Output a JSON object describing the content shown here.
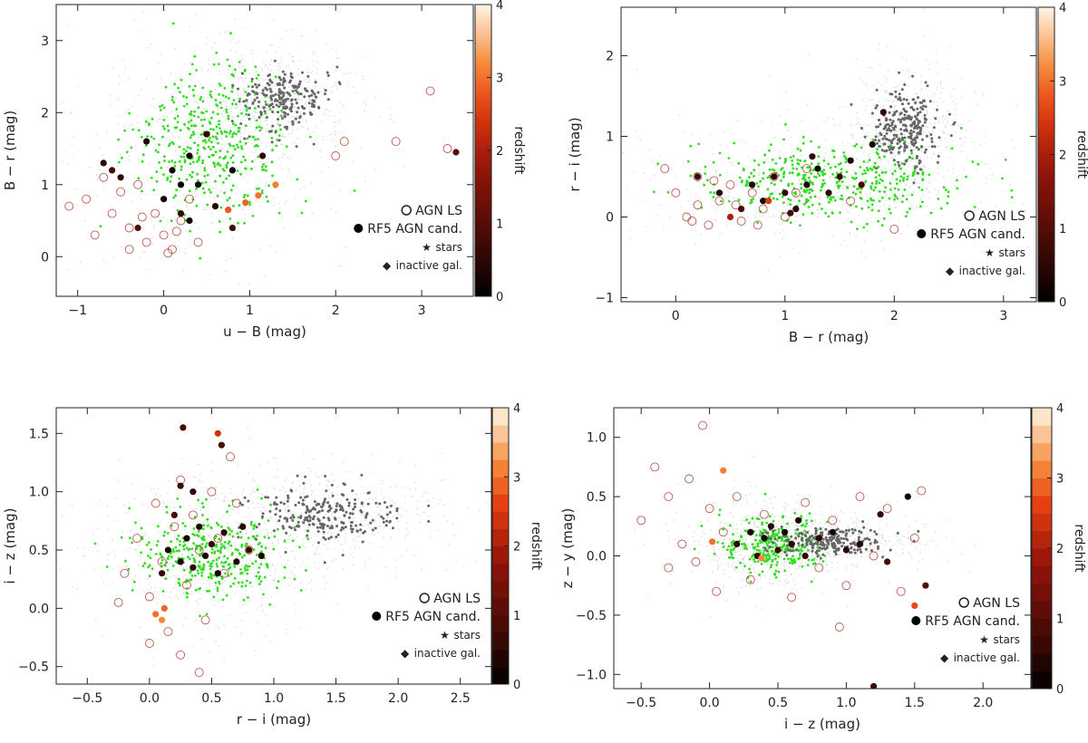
{
  "figure": {
    "legend_labels": {
      "agn": "AGN LS",
      "rf5": "RF5 AGN cand.",
      "stars": "stars",
      "inactive": "inactive gal."
    },
    "legend_symbols": {
      "star": "★",
      "diamond": "◆"
    },
    "colors": {
      "stars": "#666666",
      "inactive": "#33dd22",
      "agn_ring": "#b04030",
      "faint_cloud": "#aaaaaa"
    },
    "colorbar": {
      "label": "redshift",
      "range": [
        0,
        4
      ],
      "ticks": [
        "0",
        "1",
        "2",
        "3",
        "4"
      ]
    }
  },
  "chart_data": [
    {
      "type": "scatter",
      "xlabel": "u − B (mag)",
      "ylabel": "B − r (mag)",
      "xlim": [
        -1.25,
        3.6
      ],
      "ylim": [
        -0.55,
        3.5
      ],
      "xticks": [
        "−1",
        "0",
        "1",
        "2",
        "3"
      ],
      "xtick_values": [
        -1,
        0,
        1,
        2,
        3
      ],
      "yticks": [
        "0",
        "1",
        "2",
        "3"
      ],
      "ytick_values": [
        0,
        1,
        2,
        3
      ],
      "colorbar_style": "continuous",
      "series": [
        {
          "name": "stars",
          "clusters": [
            {
              "cx": 1.4,
              "cy": 2.2,
              "sx": 0.25,
              "sy": 0.22,
              "n": 220
            }
          ]
        },
        {
          "name": "inactive gal.",
          "clusters": [
            {
              "cx": 0.6,
              "cy": 1.6,
              "sx": 0.45,
              "sy": 0.5,
              "n": 420
            }
          ]
        },
        {
          "name": "AGN LS",
          "points": [
            [
              -1.1,
              0.7
            ],
            [
              -0.9,
              0.8
            ],
            [
              -0.8,
              0.3
            ],
            [
              -0.7,
              1.1
            ],
            [
              -0.6,
              0.6
            ],
            [
              -0.5,
              0.9
            ],
            [
              -0.4,
              0.4
            ],
            [
              -0.3,
              1.0
            ],
            [
              -0.2,
              0.2
            ],
            [
              -0.1,
              0.6
            ],
            [
              0.0,
              0.3
            ],
            [
              0.1,
              0.1
            ],
            [
              0.2,
              0.5
            ],
            [
              0.3,
              0.8
            ],
            [
              0.4,
              0.2
            ],
            [
              -0.4,
              0.1
            ],
            [
              0.05,
              0.05
            ],
            [
              -0.25,
              0.55
            ],
            [
              0.15,
              0.35
            ],
            [
              2.0,
              1.4
            ],
            [
              2.1,
              1.6
            ],
            [
              2.7,
              1.6
            ],
            [
              3.1,
              2.3
            ],
            [
              3.3,
              1.5
            ]
          ]
        },
        {
          "name": "RF5 AGN cand.",
          "points": [
            [
              -0.7,
              1.3,
              0.5
            ],
            [
              -0.6,
              1.2,
              0.8
            ],
            [
              -0.5,
              1.1,
              0.6
            ],
            [
              -0.3,
              0.4,
              1.0
            ],
            [
              -0.2,
              1.6,
              0.4
            ],
            [
              0.0,
              0.8,
              0.2
            ],
            [
              0.1,
              1.2,
              0.3
            ],
            [
              0.2,
              0.6,
              0.5
            ],
            [
              0.3,
              1.4,
              0.2
            ],
            [
              0.4,
              1.0,
              0.3
            ],
            [
              0.5,
              1.7,
              0.6
            ],
            [
              0.2,
              1.0,
              0.1
            ],
            [
              0.6,
              0.7,
              0.4
            ],
            [
              0.3,
              0.5,
              0.2
            ],
            [
              0.8,
              1.2,
              0.3
            ],
            [
              0.8,
              0.4,
              0.8
            ],
            [
              0.75,
              0.65,
              2.8
            ],
            [
              0.95,
              0.75,
              2.9
            ],
            [
              1.1,
              0.85,
              3.0
            ],
            [
              1.3,
              1.0,
              3.1
            ],
            [
              1.15,
              1.4,
              0.5
            ],
            [
              3.4,
              1.45,
              1.0
            ]
          ]
        }
      ]
    },
    {
      "type": "scatter",
      "xlabel": "B − r (mag)",
      "ylabel": "r − i (mag)",
      "xlim": [
        -0.5,
        3.3
      ],
      "ylim": [
        -1.05,
        2.6
      ],
      "xticks": [
        "0",
        "1",
        "2",
        "3"
      ],
      "xtick_values": [
        0,
        1,
        2,
        3
      ],
      "yticks": [
        "−1",
        "0",
        "1",
        "2"
      ],
      "ytick_values": [
        -1,
        0,
        1,
        2
      ],
      "colorbar_style": "continuous",
      "series": [
        {
          "name": "stars",
          "clusters": [
            {
              "cx": 2.1,
              "cy": 1.1,
              "sx": 0.15,
              "sy": 0.25,
              "n": 260
            }
          ]
        },
        {
          "name": "inactive gal.",
          "clusters": [
            {
              "cx": 1.4,
              "cy": 0.45,
              "sx": 0.6,
              "sy": 0.25,
              "n": 420
            }
          ]
        },
        {
          "name": "AGN LS",
          "points": [
            [
              -0.1,
              0.6
            ],
            [
              0.0,
              0.3
            ],
            [
              0.1,
              0.0
            ],
            [
              0.2,
              0.5
            ],
            [
              0.3,
              -0.1
            ],
            [
              0.4,
              0.2
            ],
            [
              0.5,
              0.4
            ],
            [
              0.6,
              -0.05
            ],
            [
              0.7,
              0.3
            ],
            [
              0.8,
              0.1
            ],
            [
              0.9,
              0.5
            ],
            [
              1.0,
              0.0
            ],
            [
              1.1,
              0.3
            ],
            [
              1.2,
              0.6
            ],
            [
              0.2,
              0.15
            ],
            [
              0.35,
              0.45
            ],
            [
              0.55,
              0.15
            ],
            [
              0.15,
              -0.05
            ],
            [
              0.75,
              -0.1
            ],
            [
              1.6,
              0.2
            ],
            [
              2.0,
              -0.15
            ]
          ]
        },
        {
          "name": "RF5 AGN cand.",
          "points": [
            [
              0.2,
              0.5,
              0.7
            ],
            [
              0.4,
              0.3,
              0.4
            ],
            [
              0.6,
              0.1,
              0.8
            ],
            [
              0.7,
              0.4,
              0.3
            ],
            [
              0.8,
              0.2,
              0.2
            ],
            [
              0.9,
              0.5,
              0.5
            ],
            [
              1.0,
              0.3,
              0.6
            ],
            [
              1.1,
              0.1,
              0.4
            ],
            [
              1.2,
              0.4,
              0.3
            ],
            [
              1.3,
              0.6,
              0.2
            ],
            [
              1.4,
              0.3,
              0.5
            ],
            [
              1.5,
              0.5,
              0.6
            ],
            [
              1.6,
              0.7,
              0.3
            ],
            [
              1.7,
              0.4,
              0.8
            ],
            [
              1.8,
              0.9,
              0.2
            ],
            [
              0.5,
              0.0,
              2.0
            ],
            [
              0.85,
              0.2,
              2.5
            ],
            [
              1.05,
              0.05,
              0.7
            ],
            [
              1.25,
              0.75,
              0.6
            ],
            [
              1.9,
              1.3,
              0.5
            ]
          ]
        }
      ]
    },
    {
      "type": "scatter",
      "xlabel": "r − i (mag)",
      "ylabel": "i − z (mag)",
      "xlim": [
        -0.75,
        2.75
      ],
      "ylim": [
        -0.65,
        1.72
      ],
      "xticks": [
        "−0.5",
        "0.0",
        "0.5",
        "1.0",
        "1.5",
        "2.0",
        "2.5"
      ],
      "xtick_values": [
        -0.5,
        0.0,
        0.5,
        1.0,
        1.5,
        2.0,
        2.5
      ],
      "yticks": [
        "−0.5",
        "0.0",
        "0.5",
        "1.0",
        "1.5"
      ],
      "ytick_values": [
        -0.5,
        0.0,
        0.5,
        1.0,
        1.5
      ],
      "colorbar_style": "stepped",
      "series": [
        {
          "name": "stars",
          "clusters": [
            {
              "cx": 1.4,
              "cy": 0.8,
              "sx": 0.3,
              "sy": 0.12,
              "n": 240
            }
          ]
        },
        {
          "name": "inactive gal.",
          "clusters": [
            {
              "cx": 0.5,
              "cy": 0.45,
              "sx": 0.3,
              "sy": 0.2,
              "n": 360
            }
          ]
        },
        {
          "name": "AGN LS",
          "points": [
            [
              -0.2,
              0.3
            ],
            [
              -0.1,
              0.6
            ],
            [
              0.0,
              0.1
            ],
            [
              0.05,
              0.9
            ],
            [
              0.1,
              0.4
            ],
            [
              0.15,
              -0.2
            ],
            [
              0.2,
              0.7
            ],
            [
              0.25,
              1.1
            ],
            [
              0.3,
              0.2
            ],
            [
              0.35,
              0.8
            ],
            [
              0.4,
              0.5
            ],
            [
              0.45,
              -0.1
            ],
            [
              0.5,
              1.0
            ],
            [
              0.55,
              0.6
            ],
            [
              0.6,
              0.3
            ],
            [
              0.7,
              0.9
            ],
            [
              0.8,
              0.5
            ],
            [
              -0.25,
              0.05
            ],
            [
              0.0,
              -0.3
            ],
            [
              0.25,
              -0.4
            ],
            [
              0.4,
              -0.55
            ],
            [
              0.65,
              1.3
            ]
          ]
        },
        {
          "name": "RF5 AGN cand.",
          "points": [
            [
              0.1,
              0.3,
              0.6
            ],
            [
              0.15,
              0.5,
              0.4
            ],
            [
              0.2,
              0.8,
              0.8
            ],
            [
              0.25,
              0.4,
              0.3
            ],
            [
              0.3,
              0.6,
              0.2
            ],
            [
              0.35,
              0.35,
              0.5
            ],
            [
              0.4,
              0.7,
              0.4
            ],
            [
              0.45,
              0.45,
              0.3
            ],
            [
              0.5,
              0.55,
              0.6
            ],
            [
              0.55,
              0.3,
              0.2
            ],
            [
              0.6,
              0.65,
              0.5
            ],
            [
              0.7,
              0.4,
              0.3
            ],
            [
              0.75,
              0.7,
              0.4
            ],
            [
              0.8,
              0.5,
              0.6
            ],
            [
              0.9,
              0.45,
              0.2
            ],
            [
              0.25,
              1.05,
              0.7
            ],
            [
              0.27,
              1.55,
              0.9
            ],
            [
              0.55,
              1.5,
              2.4
            ],
            [
              0.58,
              1.4,
              0.8
            ],
            [
              0.35,
              1.0,
              0.5
            ],
            [
              0.05,
              -0.05,
              3.0
            ],
            [
              0.1,
              -0.1,
              3.2
            ],
            [
              0.12,
              0.0,
              2.9
            ]
          ]
        }
      ]
    },
    {
      "type": "scatter",
      "xlabel": "i − z (mag)",
      "ylabel": "z − y (mag)",
      "xlim": [
        -0.7,
        2.35
      ],
      "ylim": [
        -1.12,
        1.25
      ],
      "xticks": [
        "−0.5",
        "0.0",
        "0.5",
        "1.0",
        "1.5",
        "2.0"
      ],
      "xtick_values": [
        -0.5,
        0.0,
        0.5,
        1.0,
        1.5,
        2.0
      ],
      "yticks": [
        "−1.0",
        "−0.5",
        "0.0",
        "0.5",
        "1.0"
      ],
      "ytick_values": [
        -1.0,
        -0.5,
        0.0,
        0.5,
        1.0
      ],
      "colorbar_style": "stepped",
      "series": [
        {
          "name": "stars",
          "clusters": [
            {
              "cx": 0.85,
              "cy": 0.12,
              "sx": 0.22,
              "sy": 0.06,
              "n": 220
            }
          ]
        },
        {
          "name": "inactive gal.",
          "clusters": [
            {
              "cx": 0.45,
              "cy": 0.08,
              "sx": 0.18,
              "sy": 0.12,
              "n": 300
            }
          ]
        },
        {
          "name": "AGN LS",
          "points": [
            [
              -0.5,
              0.3
            ],
            [
              -0.4,
              0.75
            ],
            [
              -0.3,
              0.5
            ],
            [
              -0.2,
              0.1
            ],
            [
              -0.15,
              0.65
            ],
            [
              -0.1,
              -0.05
            ],
            [
              -0.05,
              1.1
            ],
            [
              0.0,
              0.4
            ],
            [
              0.05,
              -0.3
            ],
            [
              0.1,
              0.2
            ],
            [
              0.2,
              0.5
            ],
            [
              0.3,
              -0.2
            ],
            [
              0.4,
              0.35
            ],
            [
              0.6,
              -0.35
            ],
            [
              0.7,
              0.45
            ],
            [
              0.8,
              -0.1
            ],
            [
              0.9,
              0.3
            ],
            [
              1.0,
              -0.25
            ],
            [
              1.1,
              0.5
            ],
            [
              1.2,
              0.0
            ],
            [
              1.3,
              0.4
            ],
            [
              1.4,
              -0.3
            ],
            [
              1.5,
              0.15
            ],
            [
              1.55,
              0.55
            ],
            [
              -0.3,
              -0.1
            ],
            [
              0.95,
              -0.6
            ]
          ]
        },
        {
          "name": "RF5 AGN cand.",
          "points": [
            [
              0.2,
              0.1,
              0.5
            ],
            [
              0.3,
              0.2,
              0.3
            ],
            [
              0.35,
              0.0,
              0.6
            ],
            [
              0.4,
              0.15,
              0.2
            ],
            [
              0.45,
              0.25,
              0.4
            ],
            [
              0.5,
              0.05,
              0.7
            ],
            [
              0.55,
              0.2,
              0.3
            ],
            [
              0.6,
              0.1,
              0.5
            ],
            [
              0.65,
              0.3,
              0.2
            ],
            [
              0.7,
              0.0,
              0.6
            ],
            [
              0.8,
              0.15,
              0.4
            ],
            [
              0.9,
              0.2,
              0.3
            ],
            [
              1.0,
              0.05,
              0.5
            ],
            [
              1.1,
              0.1,
              0.4
            ],
            [
              1.25,
              0.35,
              0.6
            ],
            [
              1.45,
              0.5,
              0.3
            ],
            [
              1.58,
              -0.25,
              1.0
            ],
            [
              1.5,
              -0.42,
              2.7
            ],
            [
              1.2,
              -1.1,
              0.7
            ],
            [
              0.1,
              0.72,
              3.1
            ],
            [
              0.02,
              0.12,
              3.0
            ],
            [
              0.38,
              -0.02,
              3.2
            ],
            [
              1.3,
              -0.05,
              0.8
            ]
          ]
        }
      ]
    }
  ]
}
